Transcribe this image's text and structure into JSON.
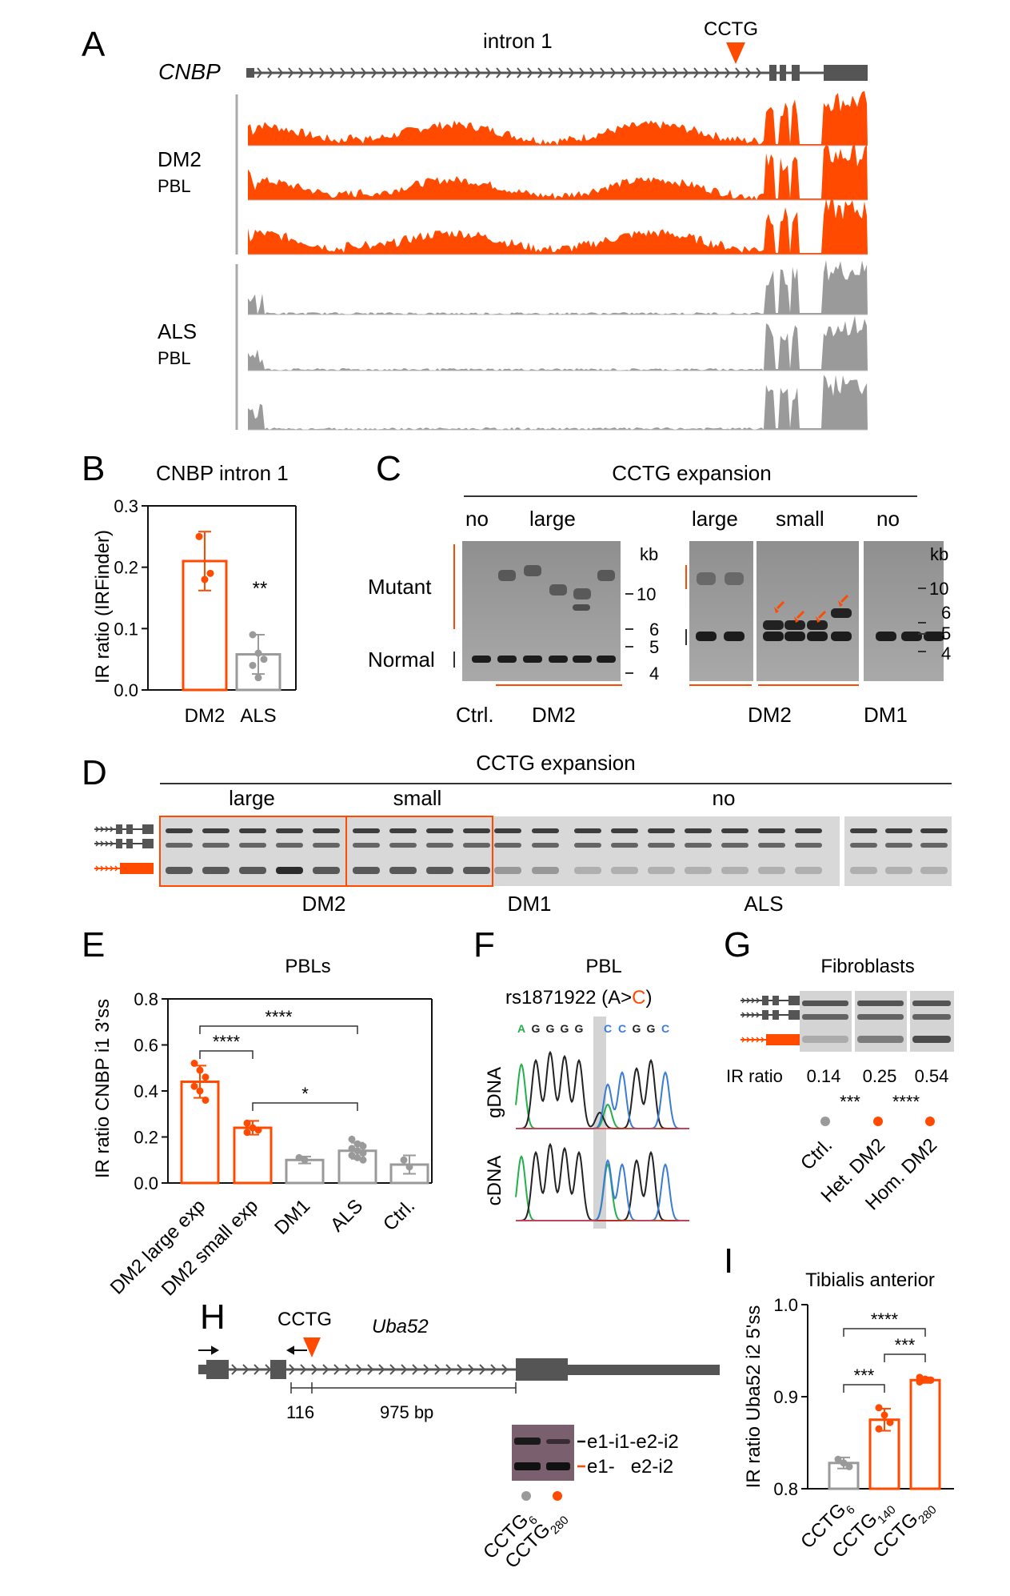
{
  "colors": {
    "dm2": "#ff4a00",
    "grey": "#9a9a9a",
    "dark": "#555555",
    "gel_bg": "#d8d8d8",
    "blot_bg": "#b9b9b9"
  },
  "panel_A": {
    "letter": "A",
    "gene": "CNBP",
    "intron_label": "intron 1",
    "repeat_label": "CCTG",
    "group1": {
      "name": "DM2",
      "tissue": "PBL"
    },
    "group2": {
      "name": "ALS",
      "tissue": "PBL"
    }
  },
  "panel_B": {
    "letter": "B",
    "title": "CNBP intron 1",
    "significance": "**",
    "chart_data": {
      "type": "bar",
      "categories": [
        "DM2",
        "ALS"
      ],
      "values": [
        0.21,
        0.058
      ],
      "errors": [
        0.048,
        0.032
      ],
      "points": [
        [
          0.25,
          0.18,
          0.19
        ],
        [
          0.09,
          0.06,
          0.05,
          0.04,
          0.02
        ]
      ],
      "ylabel": "IR ratio (IRFinder)",
      "ylim": [
        0,
        0.3
      ],
      "yticks": [
        "0.0",
        "0.1",
        "0.2",
        "0.3"
      ]
    }
  },
  "panel_C": {
    "letter": "C",
    "title": "CCTG expansion",
    "left_labels": {
      "mutant": "Mutant",
      "normal": "Normal"
    },
    "left_headers": {
      "no": "no",
      "large": "large"
    },
    "right_headers": {
      "large": "large",
      "small": "small",
      "no": "no"
    },
    "kb_label": "kb",
    "kb_ticks": [
      "10",
      "6",
      "5",
      "4"
    ],
    "bottom_labels": {
      "ctrl": "Ctrl.",
      "dm2_left": "DM2",
      "dm2_right": "DM2",
      "dm1": "DM1"
    }
  },
  "panel_D": {
    "letter": "D",
    "title": "CCTG expansion",
    "headers": {
      "large": "large",
      "small": "small",
      "no": "no"
    },
    "bottom_labels": {
      "dm2": "DM2",
      "dm1": "DM1",
      "als": "ALS"
    }
  },
  "panel_E": {
    "letter": "E",
    "title": "PBLs",
    "significance": [
      "****",
      "****",
      "*"
    ],
    "chart_data": {
      "type": "bar",
      "categories": [
        "DM2 large exp",
        "DM2 small exp",
        "DM1",
        "ALS",
        "Ctrl."
      ],
      "values": [
        0.44,
        0.24,
        0.1,
        0.14,
        0.08
      ],
      "errors": [
        0.07,
        0.03,
        0.015,
        0.035,
        0.04
      ],
      "ylabel": "IR ratio CNBP i1 3'ss",
      "ylim": [
        0,
        0.8
      ],
      "yticks": [
        "0.0",
        "0.2",
        "0.4",
        "0.6",
        "0.8"
      ]
    }
  },
  "panel_F": {
    "letter": "F",
    "title": "PBL",
    "snp_prefix": "rs1871922 (A>",
    "snp_alt": "C",
    "snp_suffix": ")",
    "sequence": [
      "A",
      "G",
      "G",
      "G",
      "G",
      "C",
      "C",
      "G",
      "G",
      "C"
    ],
    "rows": [
      "gDNA",
      "cDNA"
    ]
  },
  "panel_G": {
    "letter": "G",
    "title": "Fibroblasts",
    "ir_label": "IR ratio",
    "ir_values": [
      "0.14",
      "0.25",
      "0.54"
    ],
    "significance": [
      "***",
      "****"
    ],
    "categories": [
      "Ctrl.",
      "Het. DM2",
      "Hom. DM2"
    ]
  },
  "panel_H": {
    "letter": "H",
    "gene": "Uba52",
    "repeat_label": "CCTG",
    "dist1": "116",
    "dist2": "975 bp",
    "band_labels": [
      "e1-i1-e2-i2",
      "e1-   e2-i2"
    ],
    "lane_labels": [
      {
        "base": "CCTG",
        "sub": "6"
      },
      {
        "base": "CCTG",
        "sub": "280"
      }
    ]
  },
  "panel_I": {
    "letter": "I",
    "title": "Tibialis anterior",
    "significance": [
      "****",
      "***",
      "***"
    ],
    "chart_data": {
      "type": "bar",
      "categories": [
        "CCTG6",
        "CCTG140",
        "CCTG280"
      ],
      "values": [
        0.828,
        0.875,
        0.918
      ],
      "errors": [
        0.006,
        0.012,
        0.003
      ],
      "ylabel": "IR ratio Uba52 i2 5'ss",
      "ylim": [
        0.8,
        1.0
      ],
      "yticks": [
        "0.8",
        "0.9",
        "1.0"
      ]
    },
    "x_labels": [
      {
        "base": "CCTG",
        "sub": "6"
      },
      {
        "base": "CCTG",
        "sub": "140"
      },
      {
        "base": "CCTG",
        "sub": "280"
      }
    ]
  }
}
